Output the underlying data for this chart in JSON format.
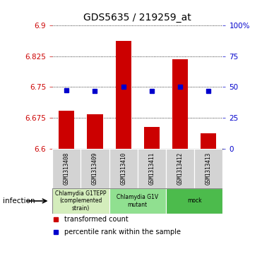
{
  "title": "GDS5635 / 219259_at",
  "samples": [
    "GSM1313408",
    "GSM1313409",
    "GSM1313410",
    "GSM1313411",
    "GSM1313412",
    "GSM1313413"
  ],
  "bar_values": [
    6.692,
    6.683,
    6.862,
    6.652,
    6.818,
    6.637
  ],
  "bar_bottom": 6.6,
  "percentile_values": [
    6.742,
    6.74,
    6.75,
    6.74,
    6.75,
    6.74
  ],
  "ylim": [
    6.6,
    6.9
  ],
  "yticks_left": [
    6.6,
    6.675,
    6.75,
    6.825,
    6.9
  ],
  "yticks_right": [
    0,
    25,
    50,
    75,
    100
  ],
  "bar_color": "#CC0000",
  "percentile_color": "#0000CC",
  "title_fontsize": 10,
  "groups": [
    {
      "label": "Chlamydia G1TEPP\n(complemented\nstrain)",
      "start": 0,
      "end": 2,
      "color": "#d4edbc"
    },
    {
      "label": "Chlamydia G1V\nmutant",
      "start": 2,
      "end": 4,
      "color": "#90e090"
    },
    {
      "label": "mock",
      "start": 4,
      "end": 6,
      "color": "#4cbb4c"
    }
  ],
  "infection_label": "infection",
  "legend_bar_label": "transformed count",
  "legend_percentile_label": "percentile rank within the sample",
  "bar_color_legend": "#CC0000",
  "percentile_color_legend": "#0000CC"
}
